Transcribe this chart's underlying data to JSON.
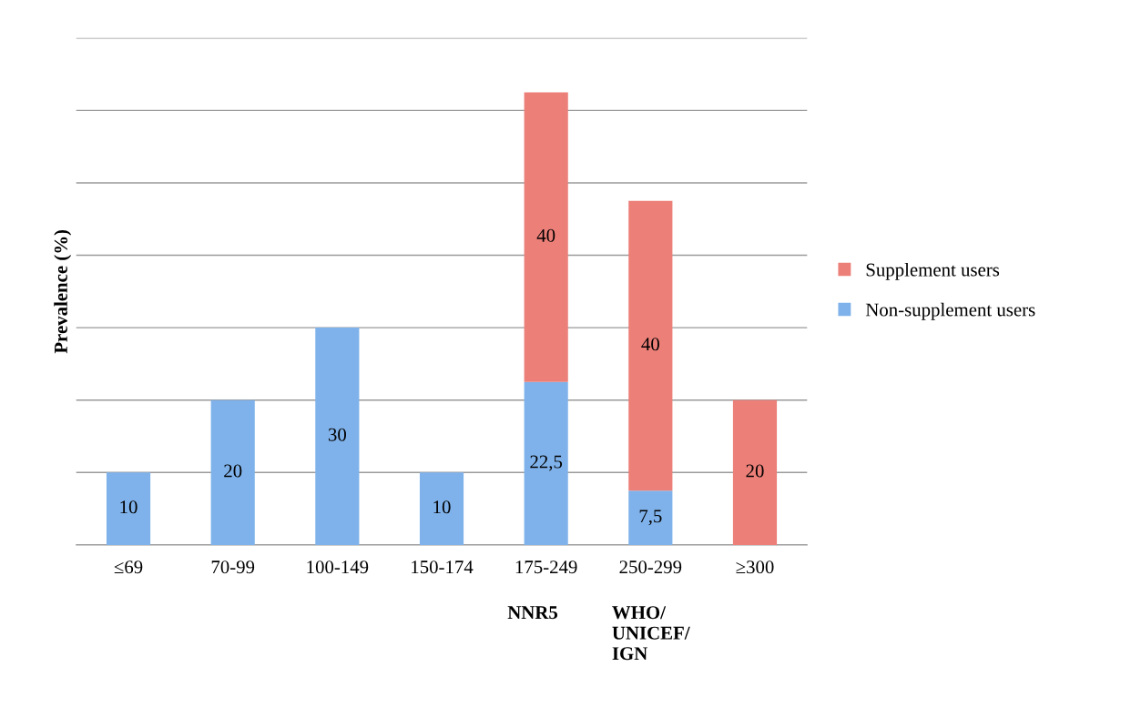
{
  "chart_data": {
    "type": "bar",
    "stacked": true,
    "ylabel": "Prevalence (%)",
    "categories": [
      "≤69",
      "70-99",
      "100-149",
      "150-174",
      "175-249\nNNR5",
      "250-299\nWHO/\nUNICEF/\nIGN",
      "≥300"
    ],
    "series": [
      {
        "name": "Non-supplement users",
        "color": "#7fb2ea",
        "values": [
          10,
          20,
          30,
          10,
          22.5,
          7.5,
          null
        ],
        "value_labels": [
          "10",
          "20",
          "30",
          "10",
          "22,5",
          "7,5",
          null
        ]
      },
      {
        "name": "Supplement users",
        "color": "#ec7f78",
        "values": [
          null,
          null,
          null,
          null,
          40,
          40,
          20
        ],
        "value_labels": [
          null,
          null,
          null,
          null,
          "40",
          "40",
          "20"
        ]
      }
    ],
    "ylim": [
      0,
      70
    ],
    "yticks": [
      {
        "value": 0,
        "label": null
      },
      {
        "value": 10,
        "label": null
      },
      {
        "value": 20,
        "label": null
      },
      {
        "value": 30,
        "label": null
      },
      {
        "value": 40,
        "label": null
      },
      {
        "value": 50,
        "label": null
      },
      {
        "value": 60,
        "label": null
      },
      {
        "value": 70,
        "label": null
      }
    ],
    "tick_labels": "x",
    "grid": "y",
    "legend": "right"
  }
}
